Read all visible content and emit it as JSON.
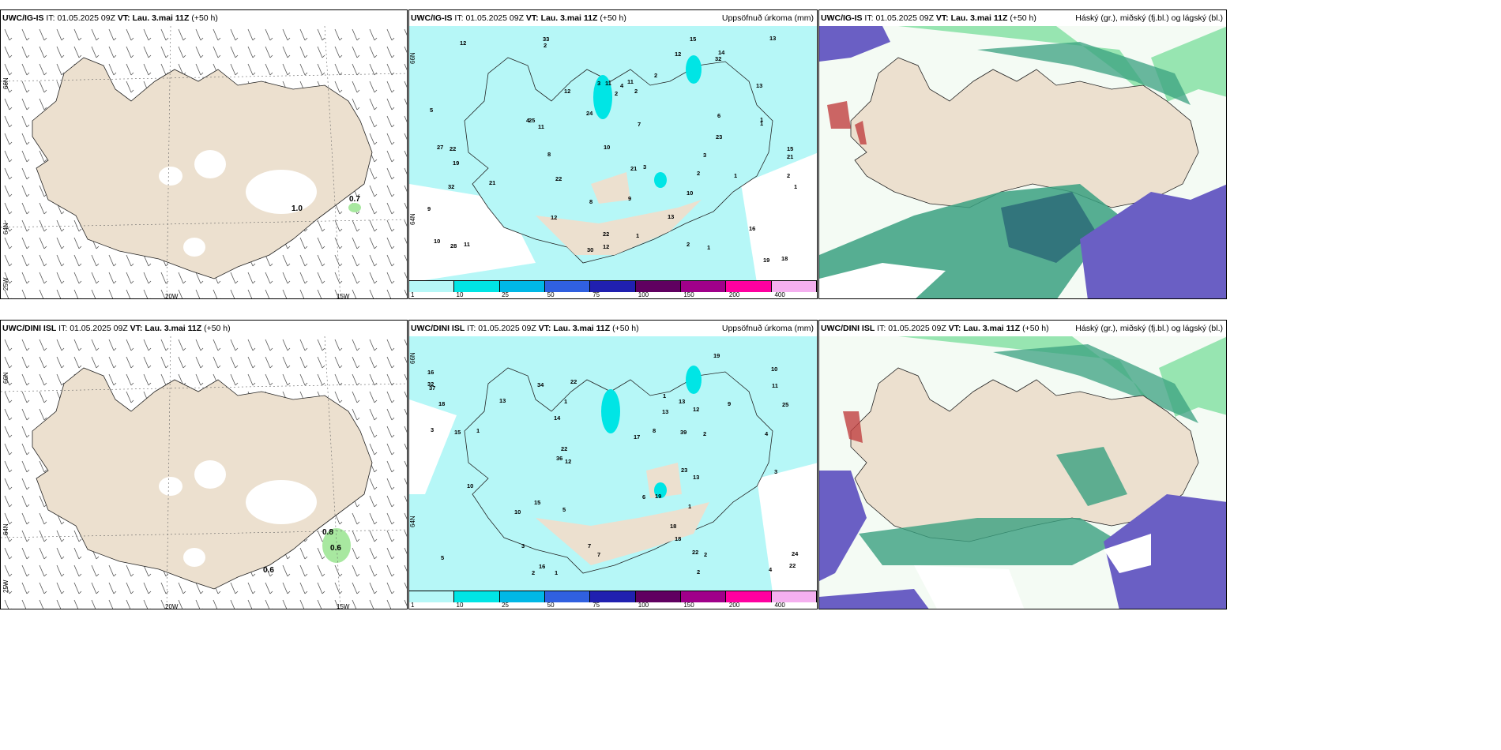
{
  "panels": [
    {
      "id": "wind-igis",
      "header": {
        "model": "UWC/IG-IS",
        "it_label": "IT:",
        "it_value": "01.05.2025 09Z",
        "vt_label": "VT:",
        "vt_value": "Lau. 3.mai 11Z",
        "lead": "(+50 h)"
      },
      "right_label": "",
      "lat_labels": [
        "66N",
        "64N",
        "25W"
      ],
      "lon_labels": [
        "20W",
        "15W"
      ],
      "wind_values": [
        "1.0",
        "0.7"
      ]
    },
    {
      "id": "precip-igis",
      "header": {
        "model": "UWC/IG-IS",
        "it_label": "IT:",
        "it_value": "01.05.2025 09Z",
        "vt_label": "VT:",
        "vt_value": "Lau. 3.mai 11Z",
        "lead": "(+50 h)"
      },
      "right_label": "Uppsöfnuð úrkoma (mm)",
      "lat_labels": [
        "66N",
        "64N"
      ],
      "precip_values": [
        "3",
        "2",
        "7",
        "2",
        "4",
        "6",
        "13",
        "10",
        "11",
        "12",
        "11",
        "9",
        "8",
        "11",
        "12",
        "21",
        "12",
        "15",
        "33",
        "27",
        "19",
        "28",
        "32",
        "13",
        "32",
        "19",
        "23",
        "30",
        "14",
        "12",
        "10",
        "11",
        "9",
        "22",
        "8",
        "24",
        "25",
        "21",
        "13",
        "18",
        "21",
        "22",
        "5",
        "12",
        "10",
        "15",
        "16",
        "22",
        "3",
        "2",
        "1",
        "1",
        "1",
        "2",
        "1",
        "1",
        "2",
        "1",
        "4",
        "2",
        "3",
        "2"
      ]
    },
    {
      "id": "cloud-igis",
      "header": {
        "model": "UWC/IG-IS",
        "it_label": "IT:",
        "it_value": "01.05.2025 09Z",
        "vt_label": "VT:",
        "vt_value": "Lau. 3.mai 11Z",
        "lead": "(+50 h)"
      },
      "right_label": "Háský (gr.), miðský (fj.bl.) og lágský (bl.)"
    },
    {
      "id": "wind-dini",
      "header": {
        "model": "UWC/DINI ISL",
        "it_label": "IT:",
        "it_value": "01.05.2025 09Z",
        "vt_label": "VT:",
        "vt_value": "Lau. 3.mai 11Z",
        "lead": "(+50 h)"
      },
      "right_label": "",
      "lat_labels": [
        "66N",
        "64N",
        "25W"
      ],
      "lon_labels": [
        "20W",
        "15W"
      ],
      "wind_values": [
        "0.8",
        "0.6",
        "0.6"
      ]
    },
    {
      "id": "precip-dini",
      "header": {
        "model": "UWC/DINI ISL",
        "it_label": "IT:",
        "it_value": "01.05.2025 09Z",
        "vt_label": "VT:",
        "vt_value": "Lau. 3.mai 11Z",
        "lead": "(+50 h)"
      },
      "right_label": "Uppsöfnuð úrkoma (mm)",
      "lat_labels": [
        "66N",
        "64N"
      ],
      "precip_values": [
        "3",
        "4",
        "7",
        "7",
        "5",
        "6",
        "11",
        "10",
        "8",
        "9",
        "13",
        "13",
        "19",
        "18",
        "25",
        "15",
        "10",
        "36",
        "39",
        "13",
        "32",
        "15",
        "24",
        "34",
        "12",
        "18",
        "22",
        "14",
        "22",
        "16",
        "19",
        "12",
        "18",
        "16",
        "13",
        "17",
        "22",
        "22",
        "23",
        "37",
        "10",
        "3",
        "2",
        "1",
        "1",
        "2",
        "2",
        "1",
        "1",
        "2",
        "1",
        "4",
        "5",
        "3"
      ]
    },
    {
      "id": "cloud-dini",
      "header": {
        "model": "UWC/DINI ISL",
        "it_label": "IT:",
        "it_value": "01.05.2025 09Z",
        "vt_label": "VT:",
        "vt_value": "Lau. 3.mai 11Z",
        "lead": "(+50 h)"
      },
      "right_label": "Háský (gr.), miðský (fj.bl.) og lágský (bl.)"
    }
  ],
  "precip_legend": {
    "labels": [
      "1",
      "10",
      "25",
      "50",
      "75",
      "100",
      "150",
      "200",
      "400"
    ],
    "colors": [
      "#b6f7f7",
      "#00e5e5",
      "#00b8e6",
      "#3060e0",
      "#2020b0",
      "#600060",
      "#a0008a",
      "#ff00a0",
      "#f5b0f0"
    ]
  },
  "colors": {
    "land": "#ece0cf",
    "ocean": "#ffffff",
    "precip_sea": "#b6f7f7",
    "low_cloud": "#6a5fc4",
    "mid_cloud": "#3aa080",
    "high_cloud": "#7fe0a0"
  }
}
